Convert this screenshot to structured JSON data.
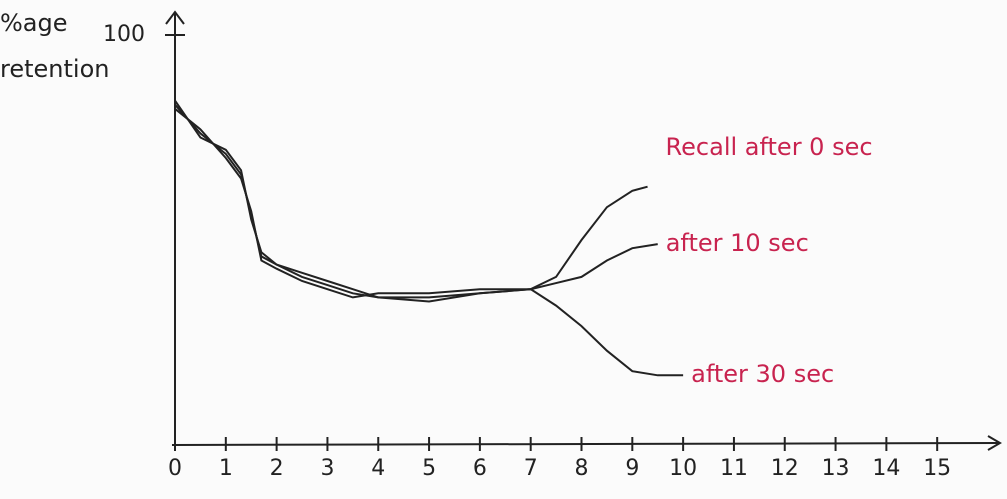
{
  "chart_data": {
    "type": "line",
    "y_label": "%age retention",
    "xlim": [
      0,
      16
    ],
    "ylim": [
      0,
      100
    ],
    "xticks": [
      0,
      1,
      2,
      3,
      4,
      5,
      6,
      7,
      8,
      9,
      10,
      11,
      12,
      13,
      14,
      15
    ],
    "yticks": [
      100
    ],
    "label_color": "#c8234f",
    "series": [
      {
        "name": "Recall after 0 sec",
        "color": "#222222",
        "x": [
          0,
          0.5,
          1,
          1.3,
          1.5,
          1.7,
          2,
          2.5,
          3,
          3.5,
          4,
          5,
          6,
          7,
          7.5,
          8,
          8.5,
          9,
          9.3
        ],
        "values": [
          83,
          76,
          71,
          66,
          56,
          46,
          44,
          41,
          39,
          37,
          36,
          36,
          37,
          38,
          41,
          50,
          58,
          62,
          63
        ]
      },
      {
        "name": "after 10 sec",
        "color": "#222222",
        "x": [
          0,
          0.5,
          1,
          1.3,
          1.5,
          1.7,
          2,
          2.5,
          3,
          3.5,
          4,
          5,
          6,
          7,
          7.5,
          8,
          8.5,
          9,
          9.5
        ],
        "values": [
          82,
          77,
          70,
          65,
          57,
          45,
          43,
          40,
          38,
          36,
          37,
          37,
          38,
          38,
          39.5,
          41,
          45,
          48,
          49
        ]
      },
      {
        "name": "after 30 sec",
        "color": "#222222",
        "x": [
          0,
          0.5,
          1,
          1.3,
          1.5,
          1.7,
          2,
          2.5,
          3,
          3.5,
          4,
          5,
          6,
          7,
          7.5,
          8,
          8.5,
          9,
          9.5,
          10
        ],
        "values": [
          84,
          75,
          72,
          67,
          55,
          47,
          44,
          42,
          40,
          38,
          36,
          35,
          37,
          38,
          34,
          29,
          23,
          18,
          17,
          17
        ]
      }
    ]
  }
}
